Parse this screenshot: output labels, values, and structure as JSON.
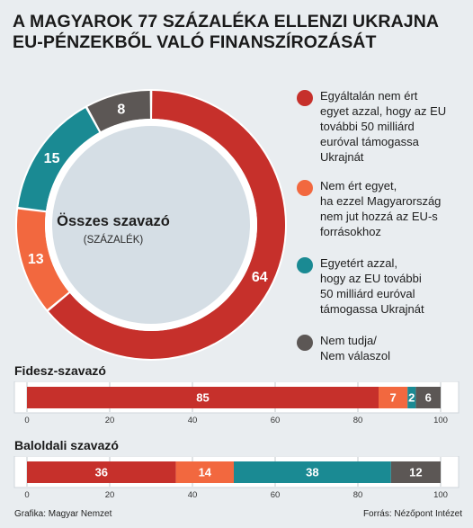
{
  "title": {
    "line1": "A MAGYAROK 77 SZÁZALÉKA ELLENZI UKRAJNA",
    "line2": "EU-PÉNZEKBŐL VALÓ FINANSZÍROZÁSÁT"
  },
  "colors": {
    "red": "#c6302b",
    "orange": "#f2683f",
    "teal": "#1a8a93",
    "gray": "#5c5755"
  },
  "legend": [
    {
      "label": "Egyáltalán nem ért\negyet azzal, hogy az EU\ntovábbi 50 milliárd\neuróval támogassa\nUkrajnát",
      "color": "#c6302b"
    },
    {
      "label": "Nem ért egyet,\nha ezzel Magyarország\nnem jut hozzá az EU-s\nforrásokhoz",
      "color": "#f2683f"
    },
    {
      "label": "Egyetért azzal,\nhogy az EU további\n50 milliárd euróval\ntámogassa Ukrajnát",
      "color": "#1a8a93"
    },
    {
      "label": "Nem tudja/\nNem válaszol",
      "color": "#5c5755"
    }
  ],
  "chart_data": [
    {
      "type": "pie",
      "title": "Összes szavazó",
      "subtitle": "(SZÁZALÉK)",
      "categories": [
        "Egyáltalán nem ért egyet azzal, hogy az EU további 50 milliárd euróval támogassa Ukrajnát",
        "Nem ért egyet, ha ezzel Magyarország nem jut hozzá az EU-s forrásokhoz",
        "Egyetért azzal, hogy az EU további 50 milliárd euróval támogassa Ukrajnát",
        "Nem tudja/Nem válaszol"
      ],
      "values": [
        64,
        13,
        15,
        8
      ],
      "value_labels": [
        "64",
        "13",
        "15",
        "8"
      ],
      "colors": [
        "#c6302b",
        "#f2683f",
        "#1a8a93",
        "#5c5755"
      ]
    },
    {
      "type": "bar",
      "title": "Fidesz-szavazó",
      "orientation": "horizontal-stacked",
      "values": [
        85,
        7,
        2,
        6
      ],
      "value_labels": [
        "85",
        "7",
        "2",
        "6"
      ],
      "colors": [
        "#c6302b",
        "#f2683f",
        "#1a8a93",
        "#5c5755"
      ],
      "xlim": [
        0,
        100
      ],
      "ticks": [
        0,
        20,
        40,
        60,
        80,
        100
      ],
      "tick_labels": [
        "0",
        "20",
        "40",
        "60",
        "80",
        "100"
      ]
    },
    {
      "type": "bar",
      "title": "Baloldali szavazó",
      "orientation": "horizontal-stacked",
      "values": [
        36,
        14,
        38,
        12
      ],
      "value_labels": [
        "36",
        "14",
        "38",
        "12"
      ],
      "colors": [
        "#c6302b",
        "#f2683f",
        "#1a8a93",
        "#5c5755"
      ],
      "xlim": [
        0,
        100
      ],
      "ticks": [
        0,
        20,
        40,
        60,
        80,
        100
      ],
      "tick_labels": [
        "0",
        "20",
        "40",
        "60",
        "80",
        "100"
      ]
    }
  ],
  "footer": {
    "left": "Grafika: Magyar Nemzet",
    "right": "Forrás: Nézőpont Intézet"
  }
}
